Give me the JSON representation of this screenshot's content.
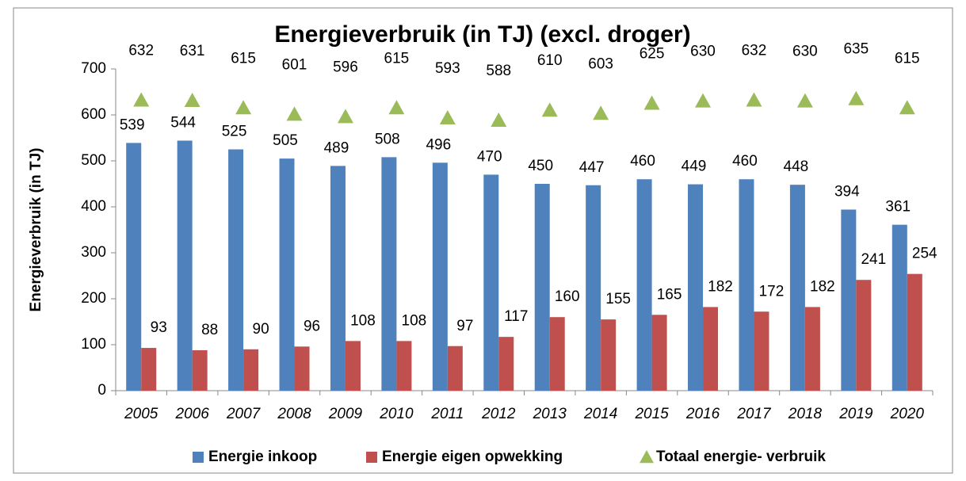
{
  "chart_data": {
    "type": "bar",
    "title": "Energieverbruik (in TJ) (excl. droger)",
    "y_label": "Energieverbruik (in TJ)",
    "categories": [
      "2005",
      "2006",
      "2007",
      "2008",
      "2009",
      "2010",
      "2011",
      "2012",
      "2013",
      "2014",
      "2015",
      "2016",
      "2017",
      "2018",
      "2019",
      "2020"
    ],
    "series": [
      {
        "name": "Energie inkoop",
        "color": "#4f81bd",
        "values": [
          539,
          544,
          525,
          505,
          489,
          508,
          496,
          470,
          450,
          447,
          460,
          449,
          460,
          448,
          394,
          361
        ]
      },
      {
        "name": "Energie eigen opwekking",
        "color": "#c0504d",
        "values": [
          93,
          88,
          90,
          96,
          108,
          108,
          97,
          117,
          160,
          155,
          165,
          182,
          172,
          182,
          241,
          254
        ]
      },
      {
        "name": "Totaal energie- verbruik",
        "color": "#9bbb59",
        "type": "scatter",
        "marker": "triangle",
        "values": [
          632,
          631,
          615,
          601,
          596,
          615,
          593,
          588,
          610,
          603,
          625,
          630,
          632,
          630,
          635,
          615
        ]
      }
    ],
    "ylim": [
      0,
      700
    ],
    "yticks": [
      0,
      100,
      200,
      300,
      400,
      500,
      600,
      700
    ],
    "grid": false,
    "legend": "bottom"
  }
}
